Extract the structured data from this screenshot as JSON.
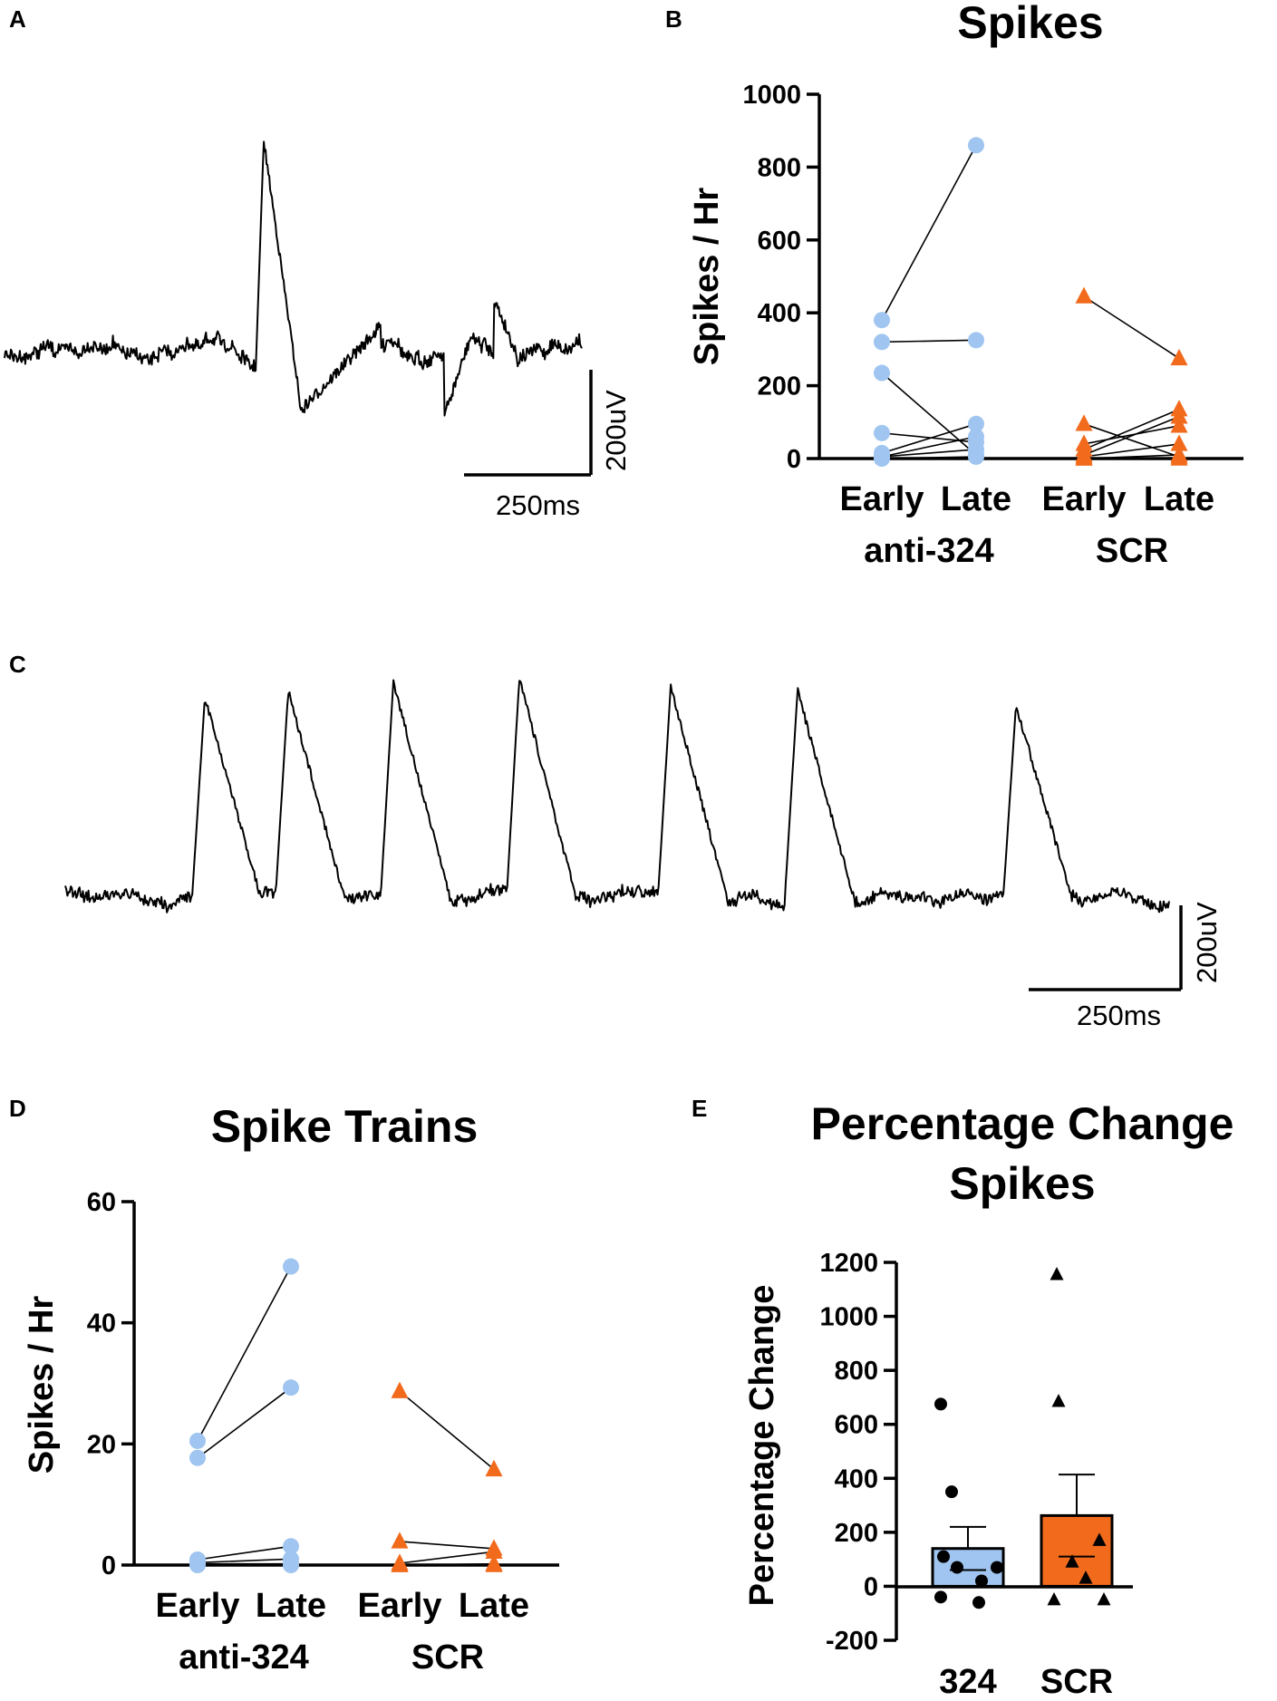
{
  "colors": {
    "anti324": "#9fc5f0",
    "scr": "#f26a1b",
    "black": "#000000"
  },
  "panels": {
    "a": "A",
    "b": "B",
    "c": "C",
    "d": "D",
    "e": "E"
  },
  "scalebar": {
    "voltage": "200uV",
    "time": "250ms"
  },
  "chart_data": [
    {
      "panel": "B",
      "type": "scatter",
      "title": "Spikes",
      "ylabel": "Spikes / Hr",
      "ylim": [
        0,
        1000
      ],
      "yticks": [
        0,
        200,
        400,
        600,
        800,
        1000
      ],
      "categories": [
        "Early",
        "Late",
        "Early",
        "Late"
      ],
      "groups": [
        "anti-324",
        "SCR"
      ],
      "series": [
        {
          "name": "anti-324",
          "marker": "circle",
          "color": "#9fc5f0",
          "pairs": [
            [
              380,
              860
            ],
            [
              320,
              325
            ],
            [
              235,
              10
            ],
            [
              70,
              45
            ],
            [
              15,
              95
            ],
            [
              5,
              60
            ],
            [
              5,
              25
            ],
            [
              0,
              5
            ]
          ]
        },
        {
          "name": "SCR",
          "marker": "triangle",
          "color": "#f26a1b",
          "pairs": [
            [
              445,
              275
            ],
            [
              95,
              5
            ],
            [
              40,
              90
            ],
            [
              25,
              135
            ],
            [
              10,
              115
            ],
            [
              5,
              40
            ],
            [
              0,
              10
            ],
            [
              0,
              0
            ]
          ]
        }
      ]
    },
    {
      "panel": "D",
      "type": "scatter",
      "title": "Spike Trains",
      "ylabel": "Spikes / Hr",
      "ylim": [
        0,
        60
      ],
      "yticks": [
        0,
        20,
        40,
        60
      ],
      "categories": [
        "Early",
        "Late",
        "Early",
        "Late"
      ],
      "groups": [
        "anti-324",
        "SCR"
      ],
      "series": [
        {
          "name": "anti-324",
          "marker": "circle",
          "color": "#9fc5f0",
          "pairs": [
            [
              20.5,
              49.3
            ],
            [
              17.7,
              29.3
            ],
            [
              0.9,
              3.1
            ],
            [
              0.4,
              1.0
            ],
            [
              0.2,
              0.2
            ],
            [
              0.0,
              0.0
            ]
          ]
        },
        {
          "name": "SCR",
          "marker": "triangle",
          "color": "#f26a1b",
          "pairs": [
            [
              28.7,
              15.8
            ],
            [
              3.9,
              2.7
            ],
            [
              0.3,
              2.2
            ],
            [
              0.0,
              0.2
            ],
            [
              0.0,
              0.0
            ]
          ]
        }
      ]
    },
    {
      "panel": "E",
      "type": "bar",
      "title": "Percentage Change",
      "subtitle": "Spikes",
      "ylabel": "Percentage Change",
      "ylim": [
        -200,
        1200
      ],
      "yticks": [
        -200,
        0,
        200,
        400,
        600,
        800,
        1000,
        1200
      ],
      "categories": [
        "324",
        "SCR"
      ],
      "values": [
        140,
        262
      ],
      "sem": [
        80,
        152
      ],
      "points": [
        [
          675,
          350,
          110,
          70,
          20,
          -40,
          -60,
          70
        ],
        [
          1155,
          685,
          170,
          90,
          30,
          -50,
          -50
        ]
      ]
    }
  ]
}
